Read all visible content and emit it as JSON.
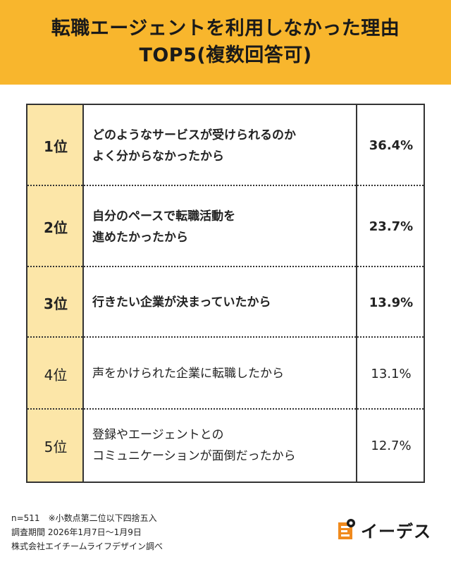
{
  "header": {
    "title_line1": "転職エージェントを利用しなかった理由",
    "title_line2": "TOP5(複数回答可)"
  },
  "chart_data": {
    "type": "table",
    "title": "転職エージェントを利用しなかった理由 TOP5(複数回答可)",
    "rows": [
      {
        "rank": "1位",
        "reason_lines": [
          "どのようなサービスが受けられるのか",
          "よく分からなかったから"
        ],
        "percent": "36.4%",
        "value": 36.4
      },
      {
        "rank": "2位",
        "reason_lines": [
          "自分のペースで転職活動を",
          "進めたかったから"
        ],
        "percent": "23.7%",
        "value": 23.7
      },
      {
        "rank": "3位",
        "reason_lines": [
          "行きたい企業が決まっていたから"
        ],
        "percent": "13.9%",
        "value": 13.9
      },
      {
        "rank": "4位",
        "reason_lines": [
          "声をかけられた企業に転職したから"
        ],
        "percent": "13.1%",
        "value": 13.1
      },
      {
        "rank": "5位",
        "reason_lines": [
          "登録やエージェントとの",
          "コミュニケーションが面倒だったから"
        ],
        "percent": "12.7%",
        "value": 12.7
      }
    ]
  },
  "footer": {
    "note1": "n=511　※小数点第二位以下四捨五入",
    "note2": "調査期間 2026年1月7日〜1月9日",
    "note3": "株式会社エイチームライフデザイン調べ"
  },
  "logo": {
    "text": "イーデス",
    "icon": "edeth-logo-mark",
    "colors": {
      "orange": "#F08A1D",
      "dark": "#1a1a1a"
    }
  },
  "colors": {
    "header_bg": "#F8B62D",
    "rank_bg": "#FCE6A8",
    "border": "#333333"
  }
}
